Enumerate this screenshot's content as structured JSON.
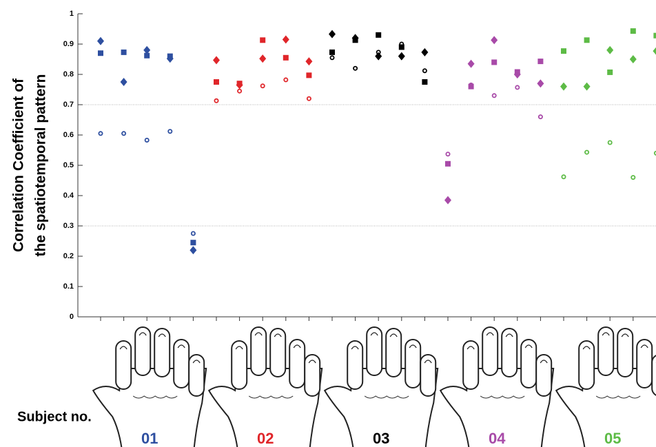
{
  "chart_data": {
    "type": "scatter",
    "y_label": [
      "Correlation Coefficient of",
      "the spatiotemporal pattern"
    ],
    "x_label": "Subject no.",
    "ylim": [
      0,
      1
    ],
    "yticks": [
      0,
      0.1,
      0.2,
      0.3,
      0.4,
      0.5,
      0.6,
      0.7,
      0.8,
      0.9,
      1
    ],
    "gridlines": [
      0.3,
      0.7
    ],
    "fingers_per_subject": 5,
    "subjects": [
      {
        "label": "01",
        "color": "#2e4fa0",
        "series": [
          {
            "marker": "diamond",
            "values": [
              0.91,
              0.775,
              0.88,
              0.852,
              0.22
            ]
          },
          {
            "marker": "square",
            "values": [
              0.87,
              0.873,
              0.862,
              0.86,
              0.245
            ]
          },
          {
            "marker": "circle",
            "values": [
              0.605,
              0.605,
              0.583,
              0.612,
              0.275
            ]
          }
        ]
      },
      {
        "label": "02",
        "color": "#e0262a",
        "series": [
          {
            "marker": "diamond",
            "values": [
              0.847,
              0.765,
              0.852,
              0.915,
              0.843
            ]
          },
          {
            "marker": "square",
            "values": [
              0.775,
              0.77,
              0.913,
              0.855,
              0.797
            ]
          },
          {
            "marker": "circle",
            "values": [
              0.713,
              0.745,
              0.762,
              0.782,
              0.72
            ]
          }
        ]
      },
      {
        "label": "03",
        "color": "#000000",
        "series": [
          {
            "marker": "diamond",
            "values": [
              0.933,
              0.92,
              0.86,
              0.86,
              0.873
            ]
          },
          {
            "marker": "square",
            "values": [
              0.873,
              0.913,
              0.93,
              0.89,
              0.775
            ]
          },
          {
            "marker": "circle",
            "values": [
              0.855,
              0.82,
              0.873,
              0.9,
              0.812
            ]
          }
        ]
      },
      {
        "label": "04",
        "color": "#a84aa8",
        "series": [
          {
            "marker": "diamond",
            "values": [
              0.385,
              0.835,
              0.913,
              0.8,
              0.77
            ]
          },
          {
            "marker": "square",
            "values": [
              0.505,
              0.76,
              0.84,
              0.808,
              0.843
            ]
          },
          {
            "marker": "circle",
            "values": [
              0.537,
              0.765,
              0.73,
              0.757,
              0.66
            ]
          }
        ]
      },
      {
        "label": "05",
        "color": "#5dbb46",
        "series": [
          {
            "marker": "diamond",
            "values": [
              0.76,
              0.76,
              0.88,
              0.85,
              0.877
            ]
          },
          {
            "marker": "square",
            "values": [
              0.877,
              0.913,
              0.807,
              0.943,
              0.928
            ]
          },
          {
            "marker": "circle",
            "values": [
              0.462,
              0.543,
              0.575,
              0.46,
              0.54
            ]
          }
        ]
      }
    ]
  }
}
